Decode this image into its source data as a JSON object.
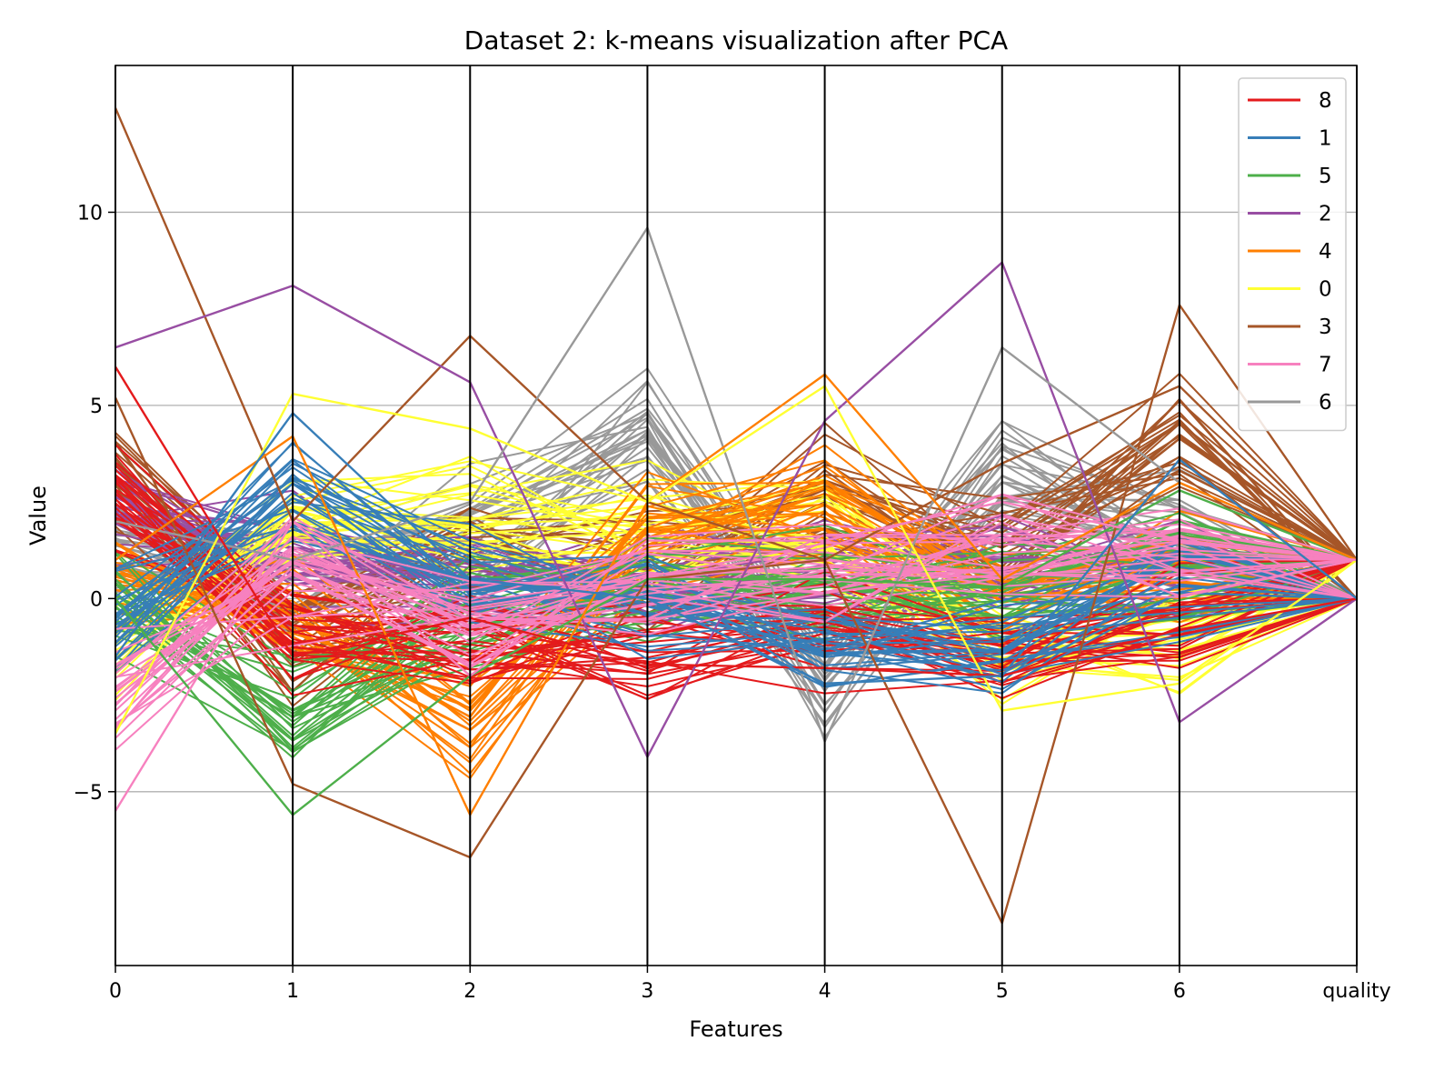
{
  "chart_data": {
    "type": "parallel_coordinates",
    "title": "Dataset 2: k-means visualization after PCA",
    "xlabel": "Features",
    "ylabel": "Value",
    "dimensions": [
      "0",
      "1",
      "2",
      "3",
      "4",
      "5",
      "6",
      "quality"
    ],
    "ylim": [
      -9.5,
      13.8
    ],
    "y_ticks": [
      -5,
      0,
      5,
      10
    ],
    "y_tick_labels": [
      "−5",
      "0",
      "5",
      "10"
    ],
    "grid": "horizontal",
    "legend_position": "top-right",
    "legend": [
      {
        "label": "8",
        "color": "#e41a1c"
      },
      {
        "label": "1",
        "color": "#377eb8"
      },
      {
        "label": "5",
        "color": "#4daf4a"
      },
      {
        "label": "2",
        "color": "#984ea3"
      },
      {
        "label": "4",
        "color": "#ff7f00"
      },
      {
        "label": "0",
        "color": "#ffff33"
      },
      {
        "label": "3",
        "color": "#a65628"
      },
      {
        "label": "7",
        "color": "#f781bf"
      },
      {
        "label": "6",
        "color": "#999999"
      }
    ],
    "notable_lines": [
      {
        "cluster": "3",
        "values": [
          12.7,
          2.0,
          6.8,
          2.5,
          1.0,
          -8.4,
          7.6,
          1
        ]
      },
      {
        "cluster": "3",
        "values": [
          5.2,
          -4.8,
          -6.7,
          0.5,
          1.0,
          3.5,
          5.5,
          1
        ]
      },
      {
        "cluster": "2",
        "values": [
          6.5,
          8.1,
          5.6,
          -4.1,
          4.6,
          8.7,
          -3.2,
          0
        ]
      },
      {
        "cluster": "6",
        "values": [
          2.0,
          1.0,
          2.5,
          9.6,
          -3.7,
          6.5,
          3.0,
          1
        ]
      },
      {
        "cluster": "5",
        "values": [
          0.0,
          -5.6,
          -2.0,
          0.5,
          0.5,
          0.3,
          2.8,
          1
        ]
      },
      {
        "cluster": "4",
        "values": [
          1.0,
          4.2,
          -5.6,
          2.5,
          5.8,
          0.5,
          3.0,
          1
        ]
      },
      {
        "cluster": "0",
        "values": [
          -3.5,
          5.3,
          4.4,
          2.5,
          5.5,
          -2.9,
          -2.2,
          1
        ]
      },
      {
        "cluster": "7",
        "values": [
          -5.5,
          2.0,
          -2.0,
          1.5,
          1.5,
          2.5,
          1.5,
          1
        ]
      },
      {
        "cluster": "8",
        "values": [
          6.0,
          -1.5,
          -0.5,
          -1.7,
          -1.8,
          -2.0,
          -0.8,
          0
        ]
      },
      {
        "cluster": "1",
        "values": [
          -1.5,
          4.8,
          0.5,
          0.0,
          -2.2,
          -2.0,
          3.6,
          0
        ]
      }
    ]
  }
}
